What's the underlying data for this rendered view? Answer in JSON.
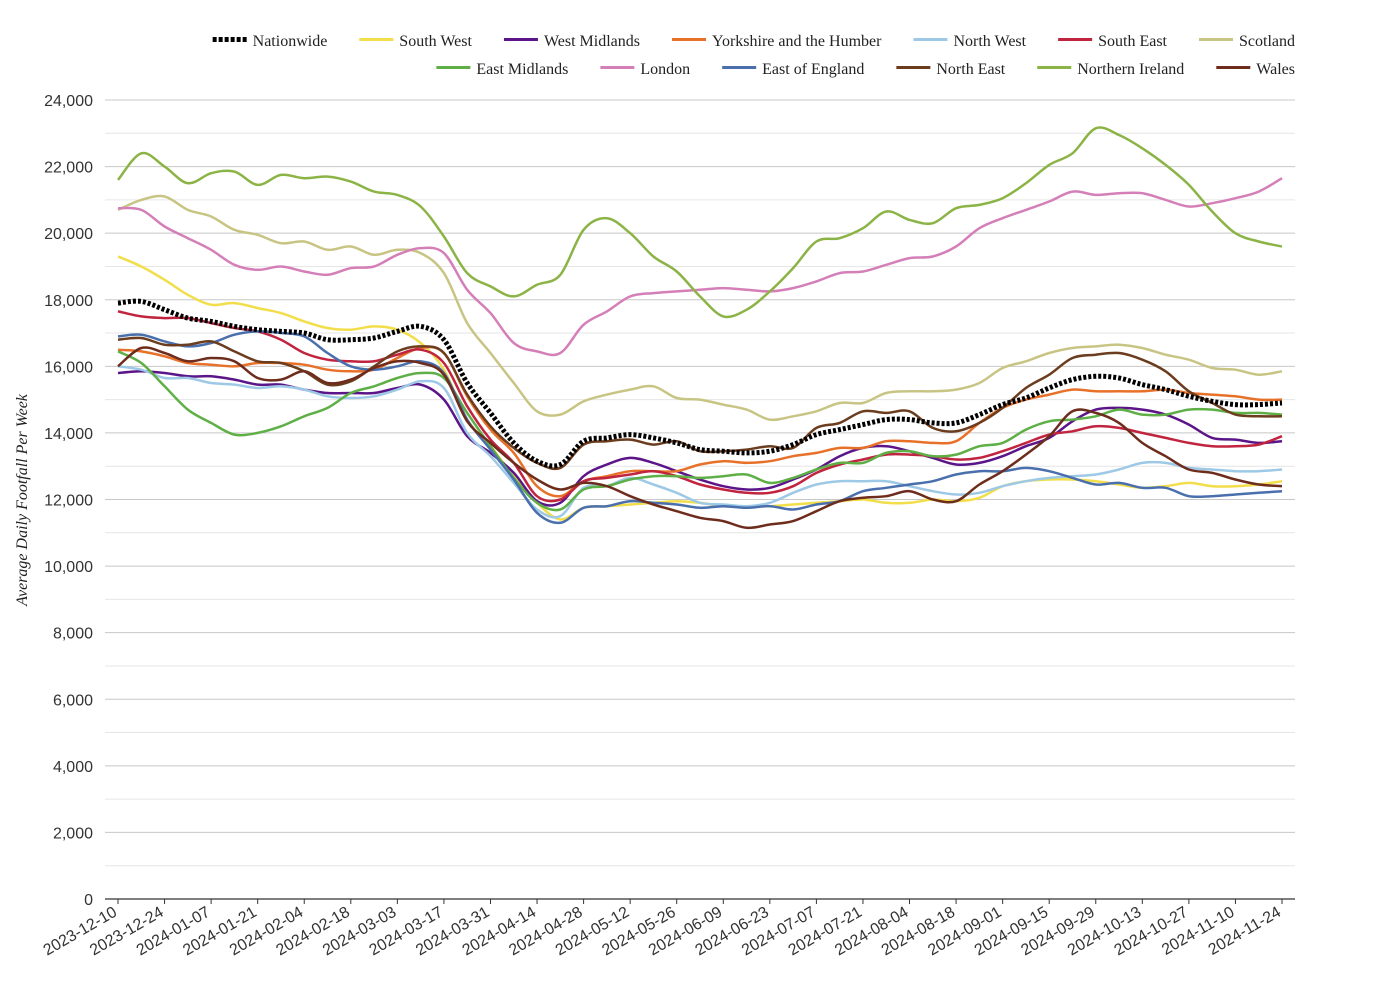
{
  "chart_data": {
    "type": "line",
    "title": "",
    "xlabel": "",
    "ylabel": "Average Daily Footfall Per Week",
    "ylim": [
      0,
      24000
    ],
    "y_ticks": [
      0,
      2000,
      4000,
      6000,
      8000,
      10000,
      12000,
      14000,
      16000,
      18000,
      20000,
      22000,
      24000
    ],
    "y_tick_labels": [
      "0",
      "2,000",
      "4,000",
      "6,000",
      "8,000",
      "10,000",
      "12,000",
      "14,000",
      "16,000",
      "18,000",
      "20,000",
      "22,000",
      "24,000"
    ],
    "x_tick_labels": [
      "2023-12-10",
      "2023-12-24",
      "2024-01-07",
      "2024-01-21",
      "2024-02-04",
      "2024-02-18",
      "2024-03-03",
      "2024-03-17",
      "2024-03-31",
      "2024-04-14",
      "2024-04-28",
      "2024-05-12",
      "2024-05-26",
      "2024-06-09",
      "2024-06-23",
      "2024-07-07",
      "2024-07-21",
      "2024-08-04",
      "2024-08-18",
      "2024-09-01",
      "2024-09-15",
      "2024-09-29",
      "2024-10-13",
      "2024-10-27",
      "2024-11-10",
      "2024-11-24"
    ],
    "grid": true,
    "legend_position": "top",
    "x": [
      "2023-12-10",
      "2023-12-17",
      "2023-12-24",
      "2023-12-31",
      "2024-01-07",
      "2024-01-14",
      "2024-01-21",
      "2024-01-28",
      "2024-02-04",
      "2024-02-11",
      "2024-02-18",
      "2024-02-25",
      "2024-03-03",
      "2024-03-10",
      "2024-03-17",
      "2024-03-24",
      "2024-03-31",
      "2024-04-07",
      "2024-04-14",
      "2024-04-21",
      "2024-04-28",
      "2024-05-05",
      "2024-05-12",
      "2024-05-19",
      "2024-05-26",
      "2024-06-02",
      "2024-06-09",
      "2024-06-16",
      "2024-06-23",
      "2024-06-30",
      "2024-07-07",
      "2024-07-14",
      "2024-07-21",
      "2024-07-28",
      "2024-08-04",
      "2024-08-11",
      "2024-08-18",
      "2024-08-25",
      "2024-09-01",
      "2024-09-08",
      "2024-09-15",
      "2024-09-22",
      "2024-09-29",
      "2024-10-06",
      "2024-10-13",
      "2024-10-20",
      "2024-10-27",
      "2024-11-03",
      "2024-11-10",
      "2024-11-17",
      "2024-11-24"
    ],
    "series": [
      {
        "name": "Nationwide",
        "color": "#000000",
        "dashed": true,
        "width": 5,
        "values": [
          17900,
          17950,
          17700,
          17450,
          17350,
          17200,
          17100,
          17050,
          17000,
          16800,
          16800,
          16850,
          17050,
          17200,
          16800,
          15500,
          14600,
          13700,
          13150,
          13050,
          13750,
          13850,
          13950,
          13850,
          13700,
          13500,
          13450,
          13400,
          13450,
          13650,
          13950,
          14100,
          14250,
          14400,
          14400,
          14300,
          14300,
          14550,
          14850,
          15050,
          15350,
          15600,
          15700,
          15650,
          15450,
          15300,
          15100,
          14950,
          14850,
          14850,
          14900
        ]
      },
      {
        "name": "South West",
        "color": "#f2de4a",
        "values": [
          19300,
          19000,
          18600,
          18150,
          17850,
          17900,
          17750,
          17600,
          17350,
          17150,
          17100,
          17200,
          17100,
          16700,
          15900,
          14400,
          13600,
          12700,
          11900,
          11400,
          11750,
          11800,
          11850,
          11900,
          11950,
          11900,
          11800,
          11800,
          11800,
          11850,
          11900,
          11950,
          12000,
          11900,
          11900,
          12000,
          11950,
          12050,
          12400,
          12550,
          12600,
          12600,
          12550,
          12450,
          12350,
          12400,
          12500,
          12400,
          12400,
          12450,
          12550
        ]
      },
      {
        "name": "West Midlands",
        "color": "#5b1589",
        "values": [
          15800,
          15850,
          15800,
          15700,
          15700,
          15600,
          15450,
          15450,
          15300,
          15200,
          15200,
          15200,
          15350,
          15450,
          15000,
          13900,
          13400,
          12800,
          11950,
          11900,
          12700,
          13050,
          13250,
          13100,
          12850,
          12600,
          12400,
          12300,
          12350,
          12600,
          12900,
          13300,
          13550,
          13600,
          13450,
          13250,
          13050,
          13100,
          13300,
          13600,
          13850,
          14350,
          14700,
          14750,
          14700,
          14550,
          14250,
          13850,
          13800,
          13700,
          13750
        ]
      },
      {
        "name": "Yorkshire and the Humber",
        "color": "#e8712a",
        "values": [
          16500,
          16450,
          16300,
          16100,
          16050,
          16000,
          16100,
          16100,
          16050,
          15900,
          15850,
          15900,
          16250,
          16550,
          16400,
          15100,
          14100,
          13400,
          12400,
          12100,
          12550,
          12700,
          12850,
          12850,
          12850,
          13050,
          13150,
          13100,
          13150,
          13300,
          13400,
          13550,
          13550,
          13750,
          13750,
          13700,
          13750,
          14300,
          14750,
          15000,
          15150,
          15300,
          15250,
          15250,
          15250,
          15300,
          15200,
          15150,
          15100,
          15000,
          15000
        ]
      },
      {
        "name": "North West",
        "color": "#9ec9e6",
        "values": [
          16000,
          15900,
          15650,
          15650,
          15500,
          15450,
          15350,
          15400,
          15300,
          15100,
          15050,
          15100,
          15300,
          15550,
          15350,
          14000,
          13300,
          12500,
          11700,
          11500,
          12350,
          12400,
          12650,
          12450,
          12200,
          11900,
          11850,
          11800,
          11900,
          12200,
          12450,
          12550,
          12550,
          12550,
          12400,
          12250,
          12150,
          12200,
          12400,
          12550,
          12650,
          12700,
          12750,
          12900,
          13100,
          13100,
          12950,
          12900,
          12850,
          12850,
          12900
        ]
      },
      {
        "name": "South East",
        "color": "#c0243f",
        "values": [
          17650,
          17500,
          17450,
          17450,
          17300,
          17150,
          17050,
          16800,
          16400,
          16200,
          16150,
          16150,
          16350,
          16500,
          16100,
          14800,
          13800,
          13100,
          12100,
          12000,
          12550,
          12650,
          12750,
          12850,
          12700,
          12450,
          12300,
          12200,
          12200,
          12400,
          12800,
          13050,
          13200,
          13350,
          13350,
          13300,
          13200,
          13250,
          13450,
          13700,
          13950,
          14050,
          14200,
          14150,
          14000,
          13850,
          13700,
          13600,
          13600,
          13650,
          13900
        ]
      },
      {
        "name": "Scotland",
        "color": "#c8c584",
        "values": [
          20700,
          21000,
          21100,
          20700,
          20500,
          20100,
          19950,
          19700,
          19750,
          19500,
          19600,
          19350,
          19500,
          19400,
          18800,
          17300,
          16400,
          15500,
          14650,
          14550,
          14950,
          15150,
          15300,
          15400,
          15050,
          15000,
          14850,
          14700,
          14400,
          14500,
          14650,
          14900,
          14900,
          15200,
          15250,
          15250,
          15300,
          15500,
          15950,
          16150,
          16400,
          16550,
          16600,
          16650,
          16550,
          16350,
          16200,
          15950,
          15900,
          15750,
          15850
        ]
      },
      {
        "name": "East Midlands",
        "color": "#5faf47",
        "values": [
          16450,
          16100,
          15400,
          14700,
          14300,
          13950,
          14000,
          14200,
          14500,
          14750,
          15200,
          15400,
          15650,
          15800,
          15650,
          14600,
          13600,
          12650,
          11900,
          11700,
          12300,
          12400,
          12600,
          12700,
          12700,
          12650,
          12700,
          12750,
          12500,
          12650,
          12900,
          13100,
          13100,
          13400,
          13450,
          13300,
          13350,
          13600,
          13700,
          14100,
          14350,
          14400,
          14500,
          14700,
          14550,
          14550,
          14700,
          14700,
          14600,
          14600,
          14550
        ]
      },
      {
        "name": "London",
        "color": "#d47fb8",
        "values": [
          20750,
          20700,
          20200,
          19850,
          19500,
          19050,
          18900,
          19000,
          18850,
          18750,
          18950,
          19000,
          19350,
          19550,
          19400,
          18300,
          17600,
          16700,
          16450,
          16400,
          17250,
          17650,
          18100,
          18200,
          18250,
          18300,
          18350,
          18300,
          18250,
          18350,
          18550,
          18800,
          18850,
          19050,
          19250,
          19300,
          19600,
          20150,
          20450,
          20700,
          20950,
          21250,
          21150,
          21200,
          21200,
          21000,
          20800,
          20900,
          21050,
          21250,
          21650
        ]
      },
      {
        "name": "East of England",
        "color": "#4a6fad",
        "values": [
          16900,
          16950,
          16750,
          16600,
          16700,
          16950,
          17050,
          17000,
          16900,
          16400,
          16000,
          15900,
          16000,
          16150,
          15800,
          14400,
          13500,
          12600,
          11600,
          11300,
          11750,
          11800,
          11950,
          11900,
          11850,
          11750,
          11800,
          11750,
          11800,
          11700,
          11850,
          11950,
          12250,
          12350,
          12450,
          12550,
          12750,
          12850,
          12850,
          12950,
          12850,
          12650,
          12450,
          12500,
          12350,
          12350,
          12100,
          12100,
          12150,
          12200,
          12250
        ]
      },
      {
        "name": "North East",
        "color": "#6b3d1e",
        "values": [
          16800,
          16850,
          16650,
          16650,
          16750,
          16450,
          16150,
          16100,
          15850,
          15450,
          15550,
          16000,
          16450,
          16600,
          16400,
          15150,
          14200,
          13550,
          13100,
          12950,
          13650,
          13750,
          13800,
          13650,
          13750,
          13450,
          13450,
          13500,
          13600,
          13550,
          14150,
          14300,
          14650,
          14600,
          14650,
          14150,
          14050,
          14300,
          14750,
          15350,
          15750,
          16250,
          16350,
          16400,
          16200,
          15850,
          15250,
          14900,
          14550,
          14500,
          14500
        ]
      },
      {
        "name": "Northern Ireland",
        "color": "#8bb345",
        "values": [
          21600,
          22400,
          22000,
          21500,
          21800,
          21850,
          21450,
          21750,
          21650,
          21700,
          21550,
          21250,
          21150,
          20800,
          19900,
          18800,
          18400,
          18100,
          18450,
          18750,
          20100,
          20450,
          20000,
          19300,
          18850,
          18100,
          17500,
          17700,
          18250,
          18950,
          19750,
          19850,
          20150,
          20650,
          20400,
          20300,
          20750,
          20850,
          21050,
          21500,
          22050,
          22400,
          23150,
          22950,
          22550,
          22050,
          21450,
          20650,
          20000,
          19750,
          19600
        ]
      },
      {
        "name": "Wales",
        "color": "#6e2c1c",
        "values": [
          16000,
          16550,
          16400,
          16150,
          16250,
          16150,
          15650,
          15600,
          15850,
          15500,
          15600,
          15950,
          16150,
          16100,
          15750,
          14350,
          13700,
          13100,
          12600,
          12300,
          12500,
          12400,
          12100,
          11850,
          11650,
          11450,
          11350,
          11150,
          11250,
          11350,
          11650,
          11950,
          12050,
          12100,
          12250,
          12000,
          11950,
          12450,
          12850,
          13350,
          13900,
          14650,
          14600,
          14300,
          13700,
          13300,
          12900,
          12800,
          12600,
          12450,
          12400
        ]
      }
    ]
  }
}
